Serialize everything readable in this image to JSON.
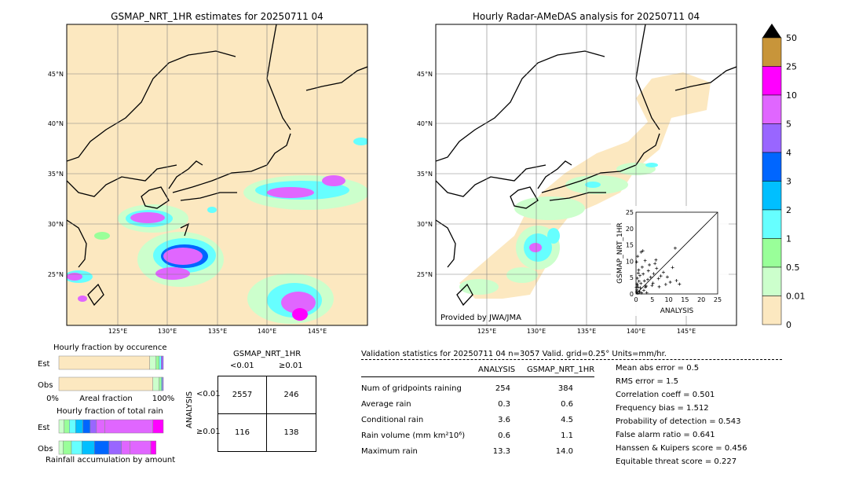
{
  "maps": {
    "left": {
      "title": "GSMAP_NRT_1HR estimates for 20250711 04",
      "lat_labels": [
        "45°N",
        "40°N",
        "35°N",
        "30°N",
        "25°N"
      ],
      "lon_labels": [
        "125°E",
        "130°E",
        "135°E",
        "140°E",
        "145°E"
      ]
    },
    "right": {
      "title": "Hourly Radar-AMeDAS analysis for 20250711 04",
      "lat_labels": [
        "45°N",
        "40°N",
        "35°N",
        "30°N",
        "25°N"
      ],
      "lon_labels": [
        "125°E",
        "130°E",
        "135°E",
        "140°E",
        "145°E"
      ],
      "credit": "Provided by JWA/JMA"
    }
  },
  "colorbar": {
    "labels": [
      "50",
      "25",
      "10",
      "5",
      "4",
      "3",
      "2",
      "1",
      "0.5",
      "0.01",
      "0"
    ],
    "colors": [
      "#c8953a",
      "#ff00ff",
      "#e066ff",
      "#9966ff",
      "#0066ff",
      "#00bfff",
      "#66ffff",
      "#99ff99",
      "#ccffcc",
      "#fce8c0"
    ]
  },
  "chart_data": [
    {
      "type": "scatter",
      "title": "",
      "xlabel": "ANALYSIS",
      "ylabel": "GSMAP_NRT_1HR",
      "xlim": [
        0,
        25
      ],
      "ylim": [
        0,
        25
      ],
      "x_ticks": [
        "0",
        "5",
        "10",
        "15",
        "20",
        "25"
      ],
      "y_ticks": [
        "0",
        "5",
        "10",
        "15",
        "20",
        "25"
      ],
      "points": [
        [
          0.3,
          1.2
        ],
        [
          0.6,
          2.1
        ],
        [
          1.1,
          0.5
        ],
        [
          0.4,
          4.8
        ],
        [
          2.2,
          6.1
        ],
        [
          0.8,
          7.3
        ],
        [
          1.5,
          3.2
        ],
        [
          3.1,
          2.4
        ],
        [
          0.2,
          9.8
        ],
        [
          1.9,
          8.2
        ],
        [
          4.5,
          5.1
        ],
        [
          2.8,
          10.2
        ],
        [
          0.5,
          11.5
        ],
        [
          5.2,
          3.3
        ],
        [
          6.3,
          7.8
        ],
        [
          3.6,
          4.4
        ],
        [
          7.1,
          2.2
        ],
        [
          1.2,
          5.6
        ],
        [
          0.9,
          3.9
        ],
        [
          8.4,
          6.6
        ],
        [
          2.4,
          1.1
        ],
        [
          4.1,
          8.9
        ],
        [
          9.6,
          5.2
        ],
        [
          5.8,
          9.3
        ],
        [
          12.4,
          4.1
        ],
        [
          13.3,
          3.0
        ],
        [
          1.6,
          12.8
        ],
        [
          3.3,
          0.4
        ],
        [
          6.9,
          4.7
        ],
        [
          10.5,
          3.6
        ],
        [
          2.1,
          13.2
        ],
        [
          4.9,
          2.6
        ],
        [
          0.7,
          6.4
        ],
        [
          1.3,
          1.9
        ],
        [
          3.8,
          7.1
        ],
        [
          7.6,
          5.5
        ],
        [
          0.4,
          2.7
        ],
        [
          2.6,
          4.0
        ],
        [
          5.4,
          6.2
        ],
        [
          11.2,
          8.1
        ],
        [
          0.2,
          0.6
        ],
        [
          0.5,
          0.2
        ],
        [
          1.0,
          0.8
        ],
        [
          0.3,
          3.1
        ],
        [
          0.1,
          2.0
        ],
        [
          12.0,
          14.0
        ],
        [
          6.1,
          10.4
        ],
        [
          9.1,
          2.9
        ],
        [
          2.9,
          2.1
        ],
        [
          1.7,
          0.3
        ]
      ]
    },
    {
      "type": "bar",
      "title": "Hourly fraction by occurence",
      "categories": [
        "Est",
        "Obs"
      ],
      "xlabel": "Areal fraction",
      "x_ticks": [
        "0%",
        "100%"
      ],
      "series": [
        {
          "values": [
            0.87,
            0.9
          ]
        },
        {
          "values": [
            0.06,
            0.06
          ]
        },
        {
          "values": [
            0.03,
            0.02
          ]
        },
        {
          "values": [
            0.02,
            0.01
          ]
        },
        {
          "values": [
            0.02,
            0.01
          ]
        }
      ]
    },
    {
      "type": "bar",
      "title": "Hourly fraction of total rain",
      "categories": [
        "Est",
        "Obs"
      ],
      "xlabel": "Rainfall accumulation by amount",
      "series": [
        {
          "values": [
            0.05,
            0.04
          ]
        },
        {
          "values": [
            0.05,
            0.08
          ]
        },
        {
          "values": [
            0.06,
            0.1
          ]
        },
        {
          "values": [
            0.07,
            0.12
          ]
        },
        {
          "values": [
            0.07,
            0.14
          ]
        },
        {
          "values": [
            0.06,
            0.12
          ]
        },
        {
          "values": [
            0.08,
            0.08
          ]
        },
        {
          "values": [
            0.46,
            0.2
          ]
        },
        {
          "values": [
            0.1,
            0.05
          ]
        }
      ]
    },
    {
      "type": "table",
      "title": "GSMAP_NRT_1HR",
      "col_headers": [
        "<0.01",
        "≥0.01"
      ],
      "row_label": "ANALYSIS",
      "row_headers": [
        "<0.01",
        "≥0.01"
      ],
      "cells": [
        [
          "2557",
          "246"
        ],
        [
          "116",
          "138"
        ]
      ]
    }
  ],
  "stats": {
    "header": "Validation statistics for 20250711 04  n=3057 Valid. grid=0.25° Units=mm/hr.",
    "col1": "ANALYSIS",
    "col2": "GSMAP_NRT_1HR",
    "rows": [
      {
        "label": "Num of gridpoints raining",
        "a": "254",
        "b": "384"
      },
      {
        "label": "Average rain",
        "a": "0.3",
        "b": "0.6"
      },
      {
        "label": "Conditional rain",
        "a": "3.6",
        "b": "4.5"
      },
      {
        "label": "Rain volume (mm km²10⁶)",
        "a": "0.6",
        "b": "1.1"
      },
      {
        "label": "Maximum rain",
        "a": "13.3",
        "b": "14.0"
      }
    ],
    "right": [
      "Mean abs error =    0.5",
      "RMS error =    1.5",
      "Correlation coeff =  0.501",
      "Frequency bias =  1.512",
      "Probability of detection =  0.543",
      "False alarm ratio =  0.641",
      "Hanssen & Kuipers score =  0.456",
      "Equitable threat score =  0.227"
    ]
  }
}
